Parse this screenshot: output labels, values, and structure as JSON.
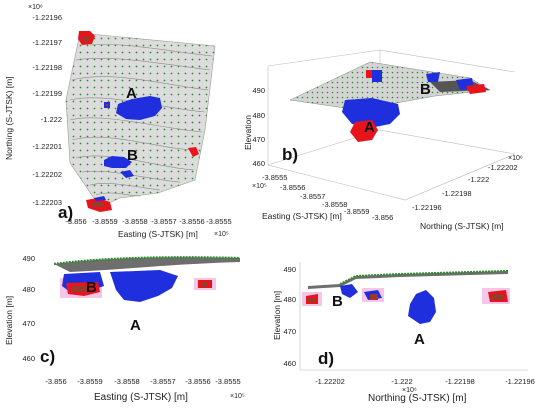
{
  "figure": {
    "panels": [
      {
        "id": "a",
        "panel_label": "a)",
        "view": "plan",
        "xlabel": "Easting (S-JTSK) [m]",
        "ylabel": "Northing (S-JTSK) [m]",
        "x_exponent": "×10⁵",
        "y_exponent": "×10⁶",
        "xticks": [
          "-3.856",
          "-3.8559",
          "-3.8558",
          "-3.8557",
          "-3.8556",
          "-3.8555"
        ],
        "yticks": [
          "-1.22196",
          "-1.22197",
          "-1.22198",
          "-1.22199",
          "-1.222",
          "-1.22201",
          "-1.22202",
          "-1.22203"
        ],
        "markers": [
          "A",
          "B"
        ]
      },
      {
        "id": "b",
        "panel_label": "b)",
        "view": "3d",
        "xlabel": "Easting (S-JTSK) [m]",
        "ylabel": "Northing (S-JTSK) [m]",
        "zlabel": "Elevation",
        "x_exponent": "×10⁵",
        "y_exponent": "×10⁶",
        "xticks": [
          "-3.8555",
          "-3.8556",
          "-3.8557",
          "-3.8558",
          "-3.8559",
          "-3.856"
        ],
        "yticks": [
          "-1.22202",
          "-1.222",
          "-1.22198",
          "-1.22196"
        ],
        "zticks": [
          "490",
          "480",
          "470",
          "460"
        ],
        "markers": [
          "A",
          "B"
        ]
      },
      {
        "id": "c",
        "panel_label": "c)",
        "view": "side",
        "xlabel": "Easting (S-JTSK) [m]",
        "ylabel": "Elevation [m]",
        "x_exponent": "×10⁵",
        "xticks": [
          "-3.856",
          "-3.8559",
          "-3.8558",
          "-3.8557",
          "-3.8556",
          "-3.8555"
        ],
        "yticks": [
          "490",
          "480",
          "470",
          "460"
        ],
        "markers": [
          "A",
          "B"
        ]
      },
      {
        "id": "d",
        "panel_label": "d)",
        "view": "side",
        "xlabel": "Northing (S-JTSK) [m]",
        "ylabel": "Elevation [m]",
        "x_exponent": "×10⁶",
        "xticks": [
          "-1.22202",
          "-1.222",
          "-1.22198",
          "-1.22196"
        ],
        "yticks": [
          "490",
          "480",
          "470",
          "460"
        ],
        "markers": [
          "A",
          "B"
        ]
      }
    ],
    "colors": {
      "surface": "#d9d9d9",
      "surface_dark": "#6e6e6e",
      "contour": "#8a8a8a",
      "points": "#2e8b2e",
      "anomaly_blue": "#1f2fdd",
      "anomaly_red": "#e8141c",
      "anomaly_brown": "#9b3a2a",
      "highlight_pink": "#f6c6e8"
    }
  }
}
